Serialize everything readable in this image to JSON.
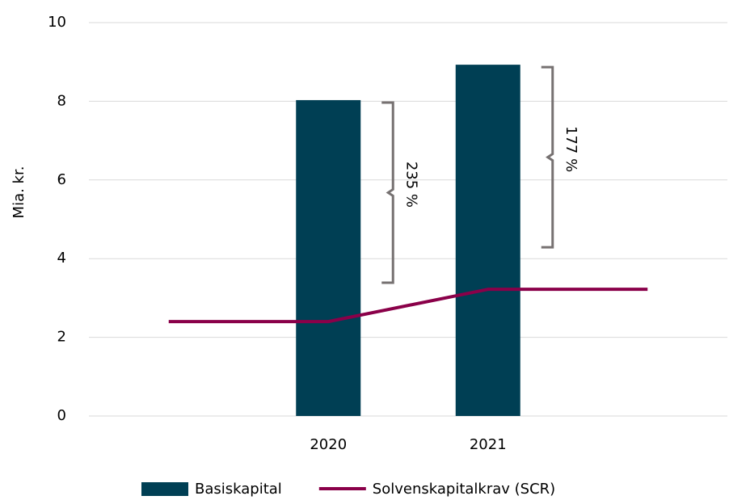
{
  "chart_data": {
    "type": "bar",
    "y_label": "Mia. kr.",
    "categories": [
      null,
      "2020",
      "2021",
      null
    ],
    "series": [
      {
        "name": "Basiskapital",
        "type": "bar",
        "color": "#003f54",
        "values": [
          null,
          8.03,
          8.93,
          null
        ]
      },
      {
        "name": "Solvenskapitalkrav (SCR)",
        "type": "line",
        "color": "#8a0049",
        "values": [
          2.4,
          2.4,
          3.22,
          3.22
        ]
      }
    ],
    "annotations": [
      {
        "text": "235 %",
        "x": "2020"
      },
      {
        "text": "177 %",
        "x": "2021"
      }
    ],
    "ylim": [
      0,
      10
    ],
    "yticks": [
      0,
      2,
      4,
      6,
      8,
      10
    ],
    "grid": true
  }
}
